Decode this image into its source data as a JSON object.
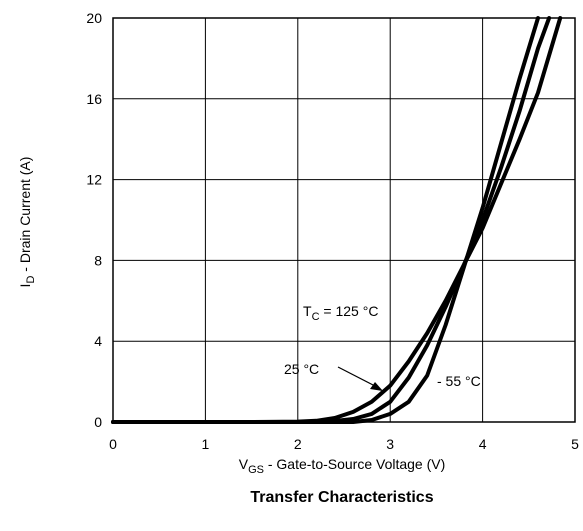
{
  "chart_data": {
    "type": "line",
    "title": "Transfer Characteristics",
    "xlabel": {
      "main": "V",
      "sub": "GS",
      "rest": " - Gate-to-Source Voltage (V)"
    },
    "ylabel": {
      "main": "I",
      "sub": "D",
      "rest": " - Drain Current (A)"
    },
    "xlim": [
      0,
      5
    ],
    "ylim": [
      0,
      20
    ],
    "xticks": [
      0,
      1,
      2,
      3,
      4,
      5
    ],
    "yticks": [
      0,
      4,
      8,
      12,
      16,
      20
    ],
    "grid": true,
    "line_color": "#000000",
    "series": [
      {
        "name": "T_C = 125 °C",
        "x": [
          0,
          1.5,
          2.0,
          2.2,
          2.4,
          2.6,
          2.8,
          3.0,
          3.2,
          3.4,
          3.6,
          3.8,
          4.0,
          4.2,
          4.4,
          4.6,
          4.84
        ],
        "y": [
          0,
          0,
          0.02,
          0.06,
          0.2,
          0.5,
          1.0,
          1.8,
          3.0,
          4.4,
          6.0,
          7.8,
          9.6,
          11.8,
          14.0,
          16.3,
          20
        ]
      },
      {
        "name": "25 °C",
        "x": [
          0,
          2.2,
          2.4,
          2.6,
          2.8,
          3.0,
          3.2,
          3.4,
          3.6,
          3.8,
          4.0,
          4.2,
          4.4,
          4.6,
          4.72
        ],
        "y": [
          0,
          0,
          0.05,
          0.15,
          0.4,
          1.0,
          2.2,
          3.8,
          5.7,
          7.8,
          10.0,
          12.6,
          15.4,
          18.5,
          20
        ]
      },
      {
        "name": "- 55 °C",
        "x": [
          0,
          2.6,
          2.8,
          3.0,
          3.2,
          3.4,
          3.6,
          3.8,
          4.0,
          4.2,
          4.4,
          4.6
        ],
        "y": [
          0,
          0,
          0.1,
          0.4,
          1.0,
          2.3,
          4.8,
          7.7,
          10.6,
          13.8,
          17.0,
          20
        ]
      }
    ],
    "annotations": {
      "tc": {
        "main": "T",
        "sub": "C",
        "rest": " = 125 °C"
      },
      "t25": "25 °C",
      "t55": "- 55 °C"
    }
  }
}
